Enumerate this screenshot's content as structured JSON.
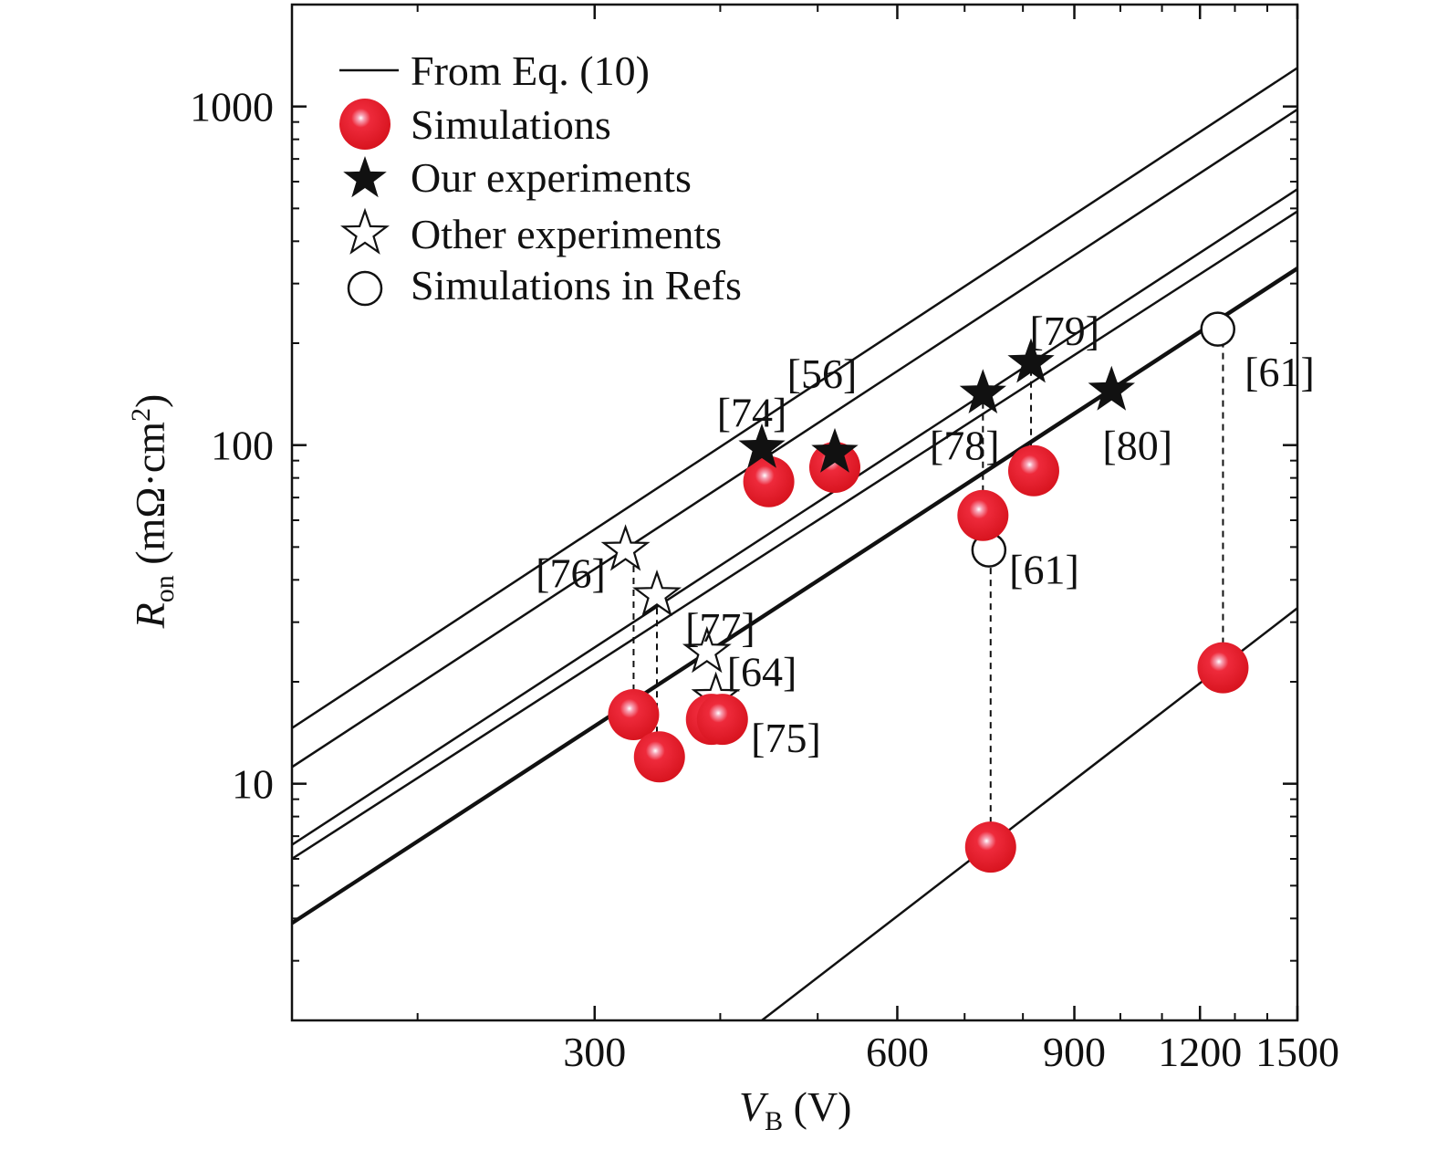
{
  "chart_data": {
    "type": "scatter",
    "x_scale": "log",
    "y_scale": "log",
    "xlim": [
      150,
      1500
    ],
    "ylim": [
      2,
      2000
    ],
    "x_ticks": [
      300,
      600,
      900,
      1200,
      1500
    ],
    "y_ticks": [
      10,
      100,
      1000
    ],
    "x_tick_labels": [
      "300",
      "600",
      "900",
      "1200",
      "1500"
    ],
    "y_tick_labels": [
      "10",
      "100",
      "1000"
    ],
    "xlabel": {
      "main": "V",
      "sub": "B",
      "unit": " (V)"
    },
    "ylabel": {
      "main": "R",
      "sub": "on",
      "unit": " (mΩ·cm",
      "sup": "2",
      "close": ")"
    },
    "grid": false,
    "legend": {
      "position": "top-left",
      "entries": [
        {
          "name": "From Eq. (10)",
          "marker": "line"
        },
        {
          "name": "Simulations",
          "marker": "red-sphere"
        },
        {
          "name": "Our experiments",
          "marker": "filled-star"
        },
        {
          "name": "Other experiments",
          "marker": "open-star"
        },
        {
          "name": "Simulations in Refs",
          "marker": "open-circle"
        }
      ]
    },
    "lines": [
      {
        "x": [
          150,
          1500
        ],
        "y": [
          14.6,
          1300
        ]
      },
      {
        "x": [
          150,
          1500
        ],
        "y": [
          11.2,
          980
        ]
      },
      {
        "x": [
          150,
          1500
        ],
        "y": [
          6.6,
          570
        ]
      },
      {
        "x": [
          150,
          1500
        ],
        "y": [
          6.0,
          490
        ]
      },
      {
        "x": [
          150,
          1500
        ],
        "y": [
          3.9,
          335
        ]
      },
      {
        "x": [
          150,
          1500
        ],
        "y": [
          3.85,
          330
        ]
      },
      {
        "x": [
          440,
          1500
        ],
        "y": [
          2.0,
          33
        ]
      }
    ],
    "series": [
      {
        "marker": "red-sphere",
        "points": [
          {
            "x": 447,
            "y": 78
          },
          {
            "x": 520,
            "y": 86
          },
          {
            "x": 730,
            "y": 62
          },
          {
            "x": 820,
            "y": 84
          },
          {
            "x": 328,
            "y": 16
          },
          {
            "x": 348,
            "y": 12
          },
          {
            "x": 392,
            "y": 15.5
          },
          {
            "x": 402,
            "y": 15.5
          },
          {
            "x": 743,
            "y": 6.5
          },
          {
            "x": 1265,
            "y": 22
          }
        ]
      },
      {
        "marker": "filled-star",
        "points": [
          {
            "x": 440,
            "y": 98
          },
          {
            "x": 520,
            "y": 95
          },
          {
            "x": 730,
            "y": 142
          },
          {
            "x": 815,
            "y": 175
          },
          {
            "x": 980,
            "y": 145
          }
        ]
      },
      {
        "marker": "open-star",
        "points": [
          {
            "x": 322,
            "y": 49
          },
          {
            "x": 346,
            "y": 36
          },
          {
            "x": 388,
            "y": 24.5
          },
          {
            "x": 396,
            "y": 18
          }
        ]
      },
      {
        "marker": "open-circle",
        "points": [
          {
            "x": 740,
            "y": 49
          },
          {
            "x": 1250,
            "y": 220
          }
        ]
      }
    ],
    "dashed_connectors": [
      {
        "x": 328,
        "y1": 16,
        "y2": 49
      },
      {
        "x": 346,
        "y1": 12,
        "y2": 36
      },
      {
        "x": 730,
        "y1": 62,
        "y2": 142
      },
      {
        "x": 815,
        "y1": 84,
        "y2": 175
      },
      {
        "x": 743,
        "y1": 6.5,
        "y2": 49
      },
      {
        "x": 1265,
        "y1": 22,
        "y2": 220
      }
    ],
    "annotations": [
      {
        "text": "[74]",
        "x": 430,
        "y": 125
      },
      {
        "text": "[56]",
        "x": 505,
        "y": 163
      },
      {
        "text": "[78]",
        "x": 700,
        "y": 100
      },
      {
        "text": "[79]",
        "x": 880,
        "y": 218
      },
      {
        "text": "[80]",
        "x": 1040,
        "y": 100
      },
      {
        "text": "[61]",
        "x": 1440,
        "y": 165
      },
      {
        "text": "[61]",
        "x": 840,
        "y": 43
      },
      {
        "text": "[76]",
        "x": 284,
        "y": 42
      },
      {
        "text": "[77]",
        "x": 400,
        "y": 29
      },
      {
        "text": "[64]",
        "x": 440,
        "y": 21.5
      },
      {
        "text": "[75]",
        "x": 465,
        "y": 13.7
      }
    ]
  }
}
